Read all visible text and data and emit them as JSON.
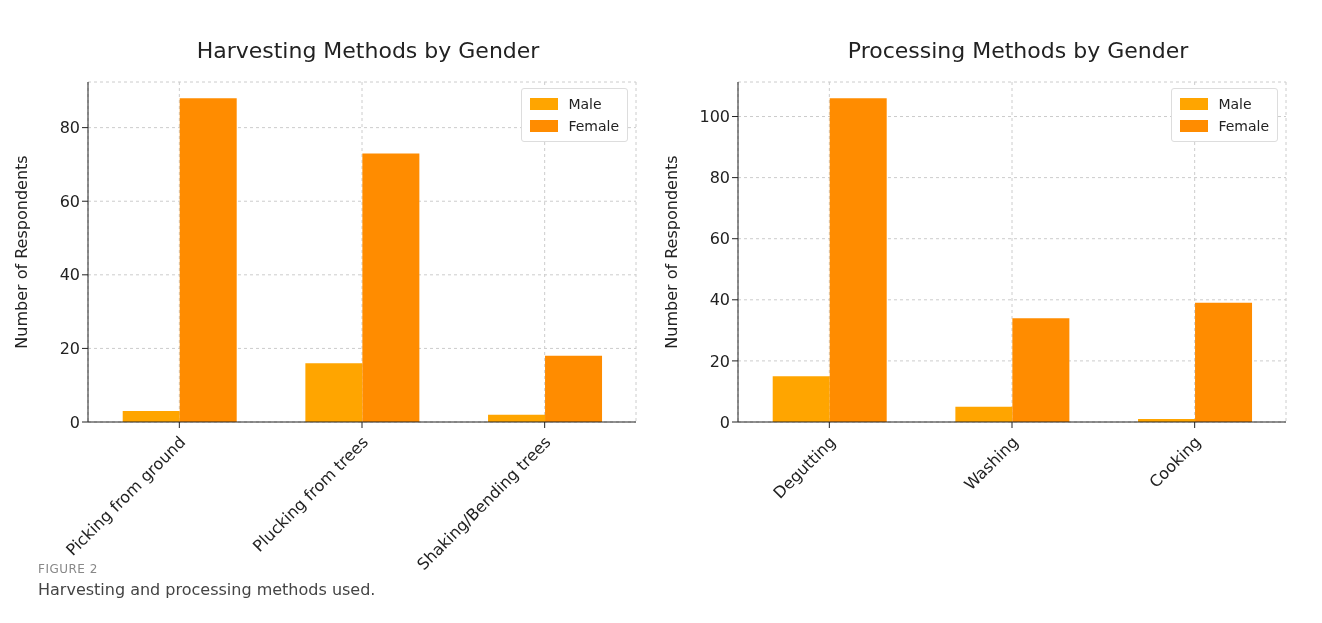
{
  "chart_data": [
    {
      "type": "bar",
      "title": "Harvesting Methods by Gender",
      "ylabel": "Number of Respondents",
      "categories": [
        "Picking from ground",
        "Plucking from trees",
        "Shaking/Bending trees"
      ],
      "series": [
        {
          "name": "Male",
          "color": "#ffa500",
          "values": [
            3,
            16,
            2
          ]
        },
        {
          "name": "Female",
          "color": "#ff8c00",
          "values": [
            88,
            73,
            18
          ]
        }
      ],
      "ylim": [
        0,
        92.4
      ],
      "yticks": [
        0,
        20,
        40,
        60,
        80
      ],
      "grid": true,
      "legend": "top right",
      "annotations": [
        "FIGURE 2",
        "Harvesting and processing methods used."
      ]
    },
    {
      "type": "bar",
      "title": "Processing Methods by Gender",
      "ylabel": "Number of Respondents",
      "categories": [
        "Degutting",
        "Washing",
        "Cooking"
      ],
      "series": [
        {
          "name": "Male",
          "color": "#ffa500",
          "values": [
            15,
            5,
            1
          ]
        },
        {
          "name": "Female",
          "color": "#ff8c00",
          "values": [
            106,
            34,
            39
          ]
        }
      ],
      "ylim": [
        0,
        111.3
      ],
      "yticks": [
        0,
        20,
        40,
        60,
        80,
        100
      ],
      "grid": true,
      "legend": "top right"
    }
  ]
}
